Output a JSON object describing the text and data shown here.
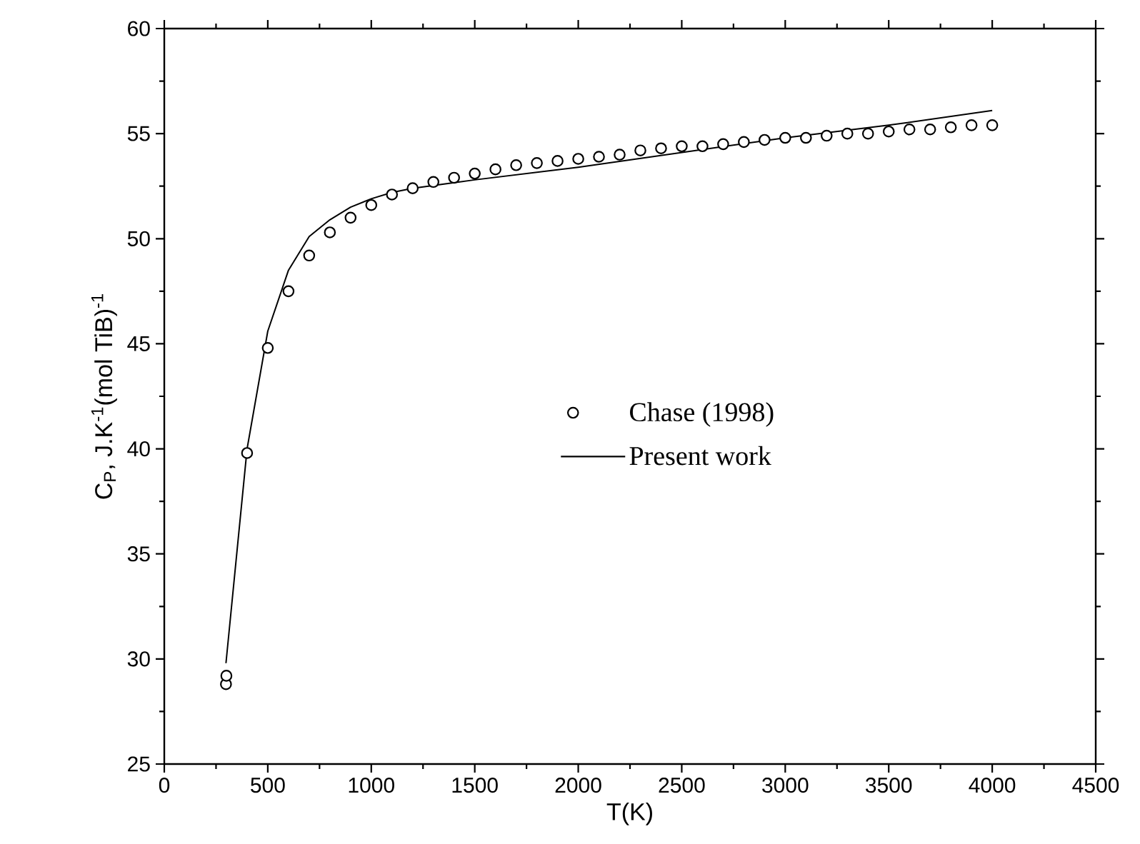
{
  "chart_data": {
    "type": "line",
    "xlabel": "T(K)",
    "ylabel": "C$_{P}$, J.K$^{-1}$(mol TiB)$^{-1}$",
    "xlim": [
      0,
      4500
    ],
    "ylim": [
      25,
      60
    ],
    "xticks": [
      0,
      500,
      1000,
      1500,
      2000,
      2500,
      3000,
      3500,
      4000,
      4500
    ],
    "yticks": [
      25,
      30,
      35,
      40,
      45,
      50,
      55,
      60
    ],
    "grid": false,
    "legend": "right",
    "series": [
      {
        "name": "Chase (1998)",
        "type": "scatter",
        "color": "#000000",
        "x": [
          298,
          300,
          400,
          500,
          600,
          700,
          800,
          900,
          1000,
          1100,
          1200,
          1300,
          1400,
          1500,
          1600,
          1700,
          1800,
          1900,
          2000,
          2100,
          2200,
          2300,
          2400,
          2500,
          2600,
          2700,
          2800,
          2900,
          3000,
          3100,
          3200,
          3300,
          3400,
          3500,
          3600,
          3700,
          3800,
          3900,
          4000
        ],
        "values": [
          28.8,
          29.2,
          39.8,
          44.8,
          47.5,
          49.2,
          50.3,
          51.0,
          51.6,
          52.1,
          52.4,
          52.7,
          52.9,
          53.1,
          53.3,
          53.5,
          53.6,
          53.7,
          53.8,
          53.9,
          54.0,
          54.2,
          54.3,
          54.4,
          54.4,
          54.5,
          54.6,
          54.7,
          54.8,
          54.8,
          54.9,
          55.0,
          55.0,
          55.1,
          55.2,
          55.2,
          55.3,
          55.4,
          55.4
        ]
      },
      {
        "name": "Present work",
        "color": "#000000",
        "x": [
          298,
          400,
          500,
          600,
          700,
          800,
          900,
          1000,
          1100,
          1200,
          1500,
          2000,
          2500,
          3000,
          3500,
          4000
        ],
        "values": [
          29.8,
          40.0,
          45.6,
          48.5,
          50.1,
          50.9,
          51.5,
          51.9,
          52.2,
          52.4,
          52.8,
          53.4,
          54.1,
          54.8,
          55.4,
          56.1
        ]
      }
    ]
  }
}
